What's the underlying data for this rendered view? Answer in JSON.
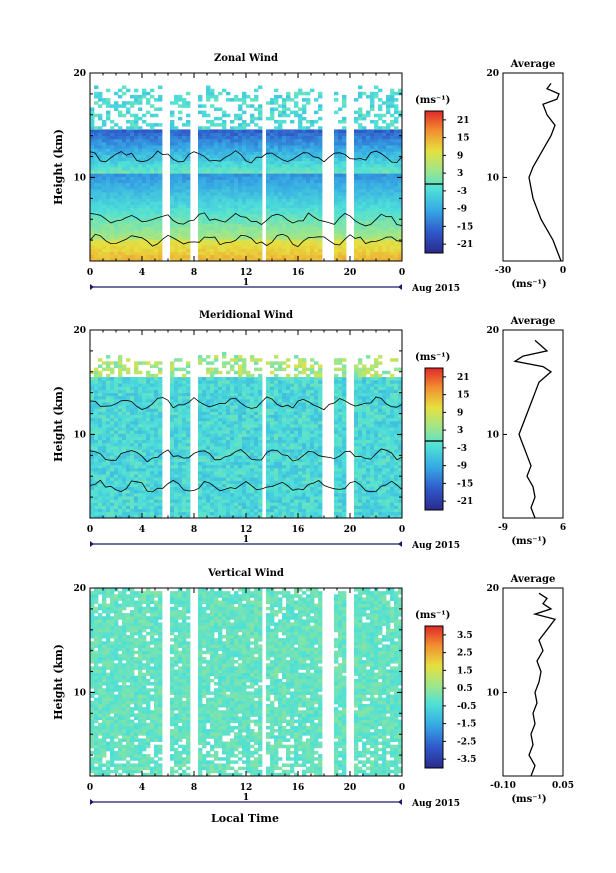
{
  "figure": {
    "x_axis_title": "Local Time",
    "date_label": "Aug 2015",
    "day_number": "1"
  },
  "chart_data": [
    {
      "type": "heatmap",
      "title": "Zonal Wind",
      "xlabel": "",
      "ylabel": "Height (km)",
      "xlim": [
        0,
        24
      ],
      "ylim": [
        2,
        20
      ],
      "x_ticks": [
        "0",
        "4",
        "8",
        "12",
        "16",
        "20",
        "0"
      ],
      "y_ticks": [
        "10",
        "20"
      ],
      "colorbar": {
        "unit": "(ms⁻¹)",
        "min": -24,
        "max": 24,
        "ticks": [
          "21",
          "15",
          "9",
          "3",
          "-3",
          "-9",
          "-15",
          "-21"
        ]
      },
      "gaps_hours": [
        [
          5.6,
          6.2
        ],
        [
          7.7,
          8.3
        ],
        [
          13.2,
          13.5
        ],
        [
          18.0,
          18.7
        ],
        [
          19.7,
          20.2
        ]
      ],
      "data_top_km": 18,
      "profile": {
        "title": "Average",
        "xlabel": "(ms⁻¹)",
        "xlim": [
          -30,
          0
        ],
        "x_ticks": [
          "-30",
          "0"
        ],
        "y_ticks": [
          "10",
          "20"
        ],
        "heights": [
          2,
          3,
          4,
          5,
          6,
          7,
          8,
          9,
          10,
          11,
          12,
          13,
          14,
          15,
          16,
          17,
          17.5,
          18,
          18.5,
          19
        ],
        "values": [
          -1,
          -3,
          -5,
          -8,
          -11,
          -13,
          -15,
          -16,
          -17,
          -15,
          -12,
          -9,
          -6,
          -4,
          -8,
          -10,
          -3,
          -2,
          -8,
          -6
        ]
      }
    },
    {
      "type": "heatmap",
      "title": "Meridional Wind",
      "xlabel": "",
      "ylabel": "Height (km)",
      "xlim": [
        0,
        24
      ],
      "ylim": [
        2,
        20
      ],
      "x_ticks": [
        "0",
        "4",
        "8",
        "12",
        "16",
        "20",
        "0"
      ],
      "y_ticks": [
        "10",
        "20"
      ],
      "colorbar": {
        "unit": "(ms⁻¹)",
        "min": -24,
        "max": 24,
        "ticks": [
          "21",
          "15",
          "9",
          "3",
          "-3",
          "-9",
          "-15",
          "-21"
        ]
      },
      "gaps_hours": [
        [
          5.6,
          6.2
        ],
        [
          7.7,
          8.3
        ],
        [
          13.2,
          13.5
        ],
        [
          18.0,
          18.7
        ],
        [
          19.7,
          20.2
        ]
      ],
      "data_top_km": 17,
      "profile": {
        "title": "Average",
        "xlabel": "(ms⁻¹)",
        "xlim": [
          -9,
          6
        ],
        "x_ticks": [
          "-9",
          "6"
        ],
        "y_ticks": [
          "10",
          "20"
        ],
        "heights": [
          2,
          3,
          4,
          5,
          6,
          7,
          8,
          9,
          10,
          11,
          12,
          13,
          14,
          15,
          16,
          16.5,
          17,
          17.5,
          18,
          19
        ],
        "values": [
          -1,
          -2,
          -1,
          -1.5,
          -3,
          -2,
          -3,
          -4,
          -5,
          -4,
          -3,
          -2,
          -1,
          0,
          3,
          1,
          -6,
          -4,
          2,
          -1
        ]
      }
    },
    {
      "type": "heatmap",
      "title": "Vertical Wind",
      "xlabel": "Local Time",
      "ylabel": "Height (km)",
      "xlim": [
        0,
        24
      ],
      "ylim": [
        2,
        20
      ],
      "x_ticks": [
        "0",
        "4",
        "8",
        "12",
        "16",
        "20",
        "0"
      ],
      "y_ticks": [
        "10",
        "20"
      ],
      "colorbar": {
        "unit": "(ms⁻¹)",
        "min": -4,
        "max": 4,
        "ticks": [
          "3.5",
          "2.5",
          "1.5",
          "0.5",
          "-0.5",
          "-1.5",
          "-2.5",
          "-3.5"
        ]
      },
      "gaps_hours": [
        [
          5.6,
          6.2
        ],
        [
          7.7,
          8.3
        ],
        [
          13.2,
          13.5
        ],
        [
          18.0,
          18.7
        ],
        [
          19.7,
          20.2
        ]
      ],
      "data_top_km": 19.5,
      "profile": {
        "title": "Average",
        "xlabel": "(ms⁻¹)",
        "xlim": [
          -0.1,
          0.05
        ],
        "x_ticks": [
          "-0.10",
          "0.05"
        ],
        "y_ticks": [
          "10",
          "20"
        ],
        "heights": [
          2,
          3,
          4,
          5,
          6,
          7,
          8,
          9,
          10,
          11,
          12,
          13,
          14,
          15,
          16,
          17,
          17.5,
          18,
          18.5,
          19,
          19.5
        ],
        "values": [
          -0.03,
          -0.02,
          -0.035,
          -0.025,
          -0.03,
          -0.02,
          -0.025,
          -0.015,
          -0.02,
          -0.01,
          -0.005,
          -0.015,
          0.0,
          -0.01,
          0.01,
          0.03,
          -0.02,
          0.02,
          0.0,
          0.01,
          -0.01
        ]
      }
    }
  ]
}
